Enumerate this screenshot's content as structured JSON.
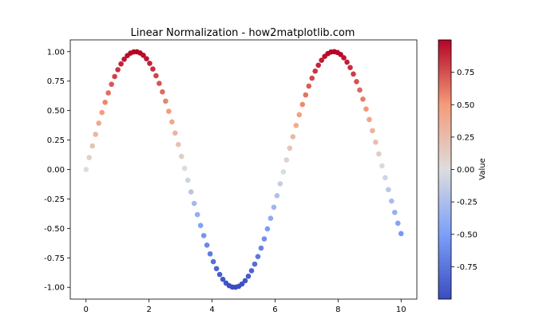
{
  "chart_data": {
    "type": "scatter",
    "title": "Linear Normalization - how2matplotlib.com",
    "xlabel": "",
    "ylabel": "",
    "xlim": [
      -0.5,
      10.5
    ],
    "ylim": [
      -1.1,
      1.1
    ],
    "x_ticks": [
      "0",
      "2",
      "4",
      "6",
      "8",
      "10"
    ],
    "x_tick_values": [
      0,
      2,
      4,
      6,
      8,
      10
    ],
    "y_ticks": [
      "-1.00",
      "-0.75",
      "-0.50",
      "-0.25",
      "0.00",
      "0.25",
      "0.50",
      "0.75",
      "1.00"
    ],
    "y_tick_values": [
      -1,
      -0.75,
      -0.5,
      -0.25,
      0,
      0.25,
      0.5,
      0.75,
      1
    ],
    "grid": false,
    "colormap": "coolwarm",
    "series": [
      {
        "x": [
          0.0,
          0.101,
          0.202,
          0.303,
          0.404,
          0.505,
          0.606,
          0.707,
          0.808,
          0.909,
          1.01,
          1.111,
          1.212,
          1.313,
          1.414,
          1.515,
          1.616,
          1.717,
          1.818,
          1.919,
          2.02,
          2.121,
          2.222,
          2.323,
          2.424,
          2.525,
          2.626,
          2.727,
          2.828,
          2.929,
          3.03,
          3.131,
          3.232,
          3.333,
          3.434,
          3.535,
          3.636,
          3.737,
          3.838,
          3.939,
          4.04,
          4.141,
          4.242,
          4.343,
          4.444,
          4.545,
          4.646,
          4.747,
          4.848,
          4.949,
          5.051,
          5.152,
          5.253,
          5.354,
          5.455,
          5.556,
          5.657,
          5.758,
          5.859,
          5.96,
          6.061,
          6.162,
          6.263,
          6.364,
          6.465,
          6.566,
          6.667,
          6.768,
          6.869,
          6.97,
          7.071,
          7.172,
          7.273,
          7.374,
          7.475,
          7.576,
          7.677,
          7.778,
          7.879,
          7.98,
          8.081,
          8.182,
          8.283,
          8.384,
          8.485,
          8.586,
          8.687,
          8.788,
          8.889,
          8.99,
          9.091,
          9.192,
          9.293,
          9.394,
          9.495,
          9.596,
          9.697,
          9.798,
          9.899,
          10.0
        ],
        "y": [
          0.0,
          0.101,
          0.2,
          0.298,
          0.393,
          0.484,
          0.57,
          0.65,
          0.723,
          0.789,
          0.847,
          0.896,
          0.936,
          0.967,
          0.988,
          0.998,
          0.999,
          0.989,
          0.969,
          0.94,
          0.901,
          0.853,
          0.796,
          0.731,
          0.659,
          0.58,
          0.494,
          0.404,
          0.309,
          0.212,
          0.111,
          0.01,
          -0.091,
          -0.19,
          -0.288,
          -0.383,
          -0.475,
          -0.561,
          -0.642,
          -0.716,
          -0.782,
          -0.841,
          -0.891,
          -0.932,
          -0.964,
          -0.986,
          -0.998,
          -0.999,
          -0.991,
          -0.972,
          -0.944,
          -0.906,
          -0.859,
          -0.803,
          -0.739,
          -0.667,
          -0.589,
          -0.504,
          -0.414,
          -0.32,
          -0.222,
          -0.121,
          -0.02,
          0.081,
          0.181,
          0.278,
          0.374,
          0.465,
          0.552,
          0.633,
          0.708,
          0.775,
          0.835,
          0.885,
          0.927,
          0.96,
          0.984,
          0.997,
          1.0,
          0.993,
          0.976,
          0.948,
          0.911,
          0.865,
          0.81,
          0.746,
          0.675,
          0.597,
          0.513,
          0.424,
          0.33,
          0.232,
          0.132,
          0.031,
          -0.07,
          -0.171,
          -0.268,
          -0.364,
          -0.456,
          -0.544
        ]
      }
    ],
    "colorbar": {
      "label": "Value",
      "range": [
        -1.0,
        1.0
      ],
      "ticks": [
        "-0.75",
        "-0.50",
        "-0.25",
        "0.00",
        "0.25",
        "0.50",
        "0.75"
      ],
      "tick_values": [
        -0.75,
        -0.5,
        -0.25,
        0,
        0.25,
        0.5,
        0.75
      ]
    }
  }
}
